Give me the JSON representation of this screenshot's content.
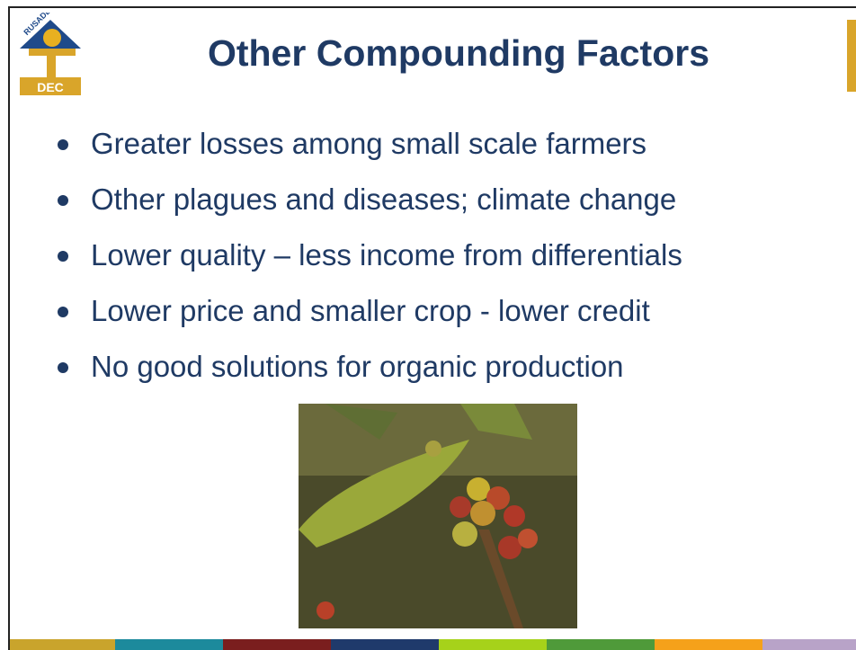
{
  "logo": {
    "arc_text": "RUSADES",
    "label": "DEC"
  },
  "title": "Other Compounding Factors",
  "bullets": [
    "Greater losses among small scale farmers",
    "Other plagues and diseases; climate change",
    "Lower quality – less income from differentials",
    "Lower price and smaller crop - lower credit",
    "No good solutions for organic production"
  ]
}
